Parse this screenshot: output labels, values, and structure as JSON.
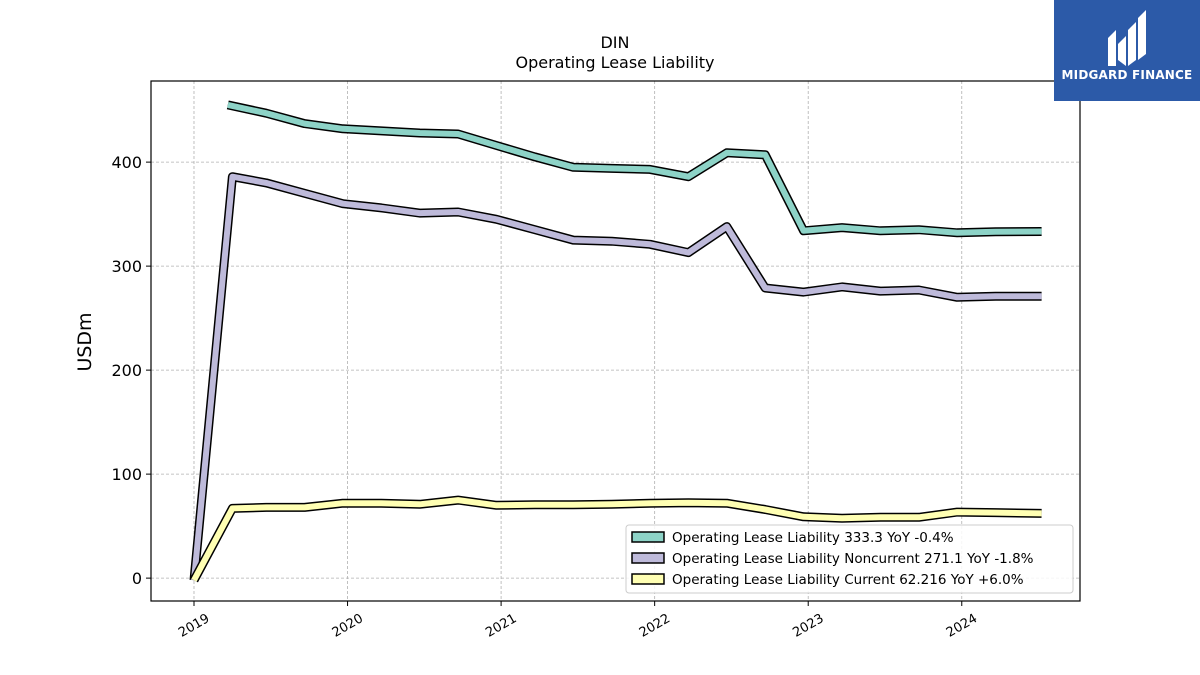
{
  "chart_data": {
    "type": "line",
    "title": "DIN",
    "subtitle": "Operating Lease Liability",
    "ylabel": "USDm",
    "xlabel": "",
    "ylim": [
      -22,
      478
    ],
    "xlim": [
      2018.72,
      2024.77
    ],
    "yticks": [
      0,
      100,
      200,
      300,
      400
    ],
    "xticks": [
      {
        "label": "2019",
        "value": 2019.0
      },
      {
        "label": "2020",
        "value": 2020.0
      },
      {
        "label": "2021",
        "value": 2021.0
      },
      {
        "label": "2022",
        "value": 2022.0
      },
      {
        "label": "2023",
        "value": 2023.0
      },
      {
        "label": "2024",
        "value": 2024.0
      }
    ],
    "grid": true,
    "legend_position": "lower-right",
    "series": [
      {
        "name": "Operating Lease Liability  333.3 YoY -0.4%",
        "color": "#8dd3c7",
        "x": [
          2019.22,
          2019.47,
          2019.72,
          2019.97,
          2020.22,
          2020.47,
          2020.72,
          2020.97,
          2021.22,
          2021.47,
          2021.72,
          2021.97,
          2022.22,
          2022.47,
          2022.72,
          2022.97,
          2023.22,
          2023.47,
          2023.72,
          2023.97,
          2024.22,
          2024.52
        ],
        "values": [
          455,
          447,
          437,
          432,
          430,
          428,
          427,
          416,
          405,
          395,
          394,
          393,
          386,
          409,
          407,
          334,
          337,
          334,
          335,
          332,
          333,
          333.3
        ]
      },
      {
        "name": "Operating Lease Liability Noncurrent  271.1 YoY -1.8%",
        "color": "#bebada",
        "x": [
          2019.0,
          2019.25,
          2019.47,
          2019.72,
          2019.97,
          2020.22,
          2020.47,
          2020.72,
          2020.97,
          2021.22,
          2021.47,
          2021.72,
          2021.97,
          2022.22,
          2022.47,
          2022.72,
          2022.97,
          2023.22,
          2023.47,
          2023.72,
          2023.97,
          2024.22,
          2024.52
        ],
        "values": [
          -2,
          386,
          380,
          370,
          360,
          356,
          351,
          352,
          345,
          335,
          325,
          324,
          321,
          313,
          338,
          279,
          275,
          280,
          276,
          277,
          270,
          271,
          271.1
        ]
      },
      {
        "name": "Operating Lease Liability Current  62.216 YoY +6.0%",
        "color": "#ffffb3",
        "x": [
          2019.0,
          2019.25,
          2019.47,
          2019.72,
          2019.97,
          2020.22,
          2020.47,
          2020.72,
          2020.97,
          2021.22,
          2021.47,
          2021.72,
          2021.97,
          2022.22,
          2022.47,
          2022.72,
          2022.97,
          2023.22,
          2023.47,
          2023.72,
          2023.97,
          2024.22,
          2024.52
        ],
        "values": [
          -2,
          67,
          68,
          68,
          72,
          72,
          71,
          75,
          70,
          70.5,
          70.5,
          71,
          72,
          72.5,
          72,
          66,
          59,
          57.5,
          58.5,
          58.5,
          63.5,
          63,
          62.2
        ]
      }
    ]
  },
  "logo": {
    "text": "MIDGARD FINANCE"
  }
}
